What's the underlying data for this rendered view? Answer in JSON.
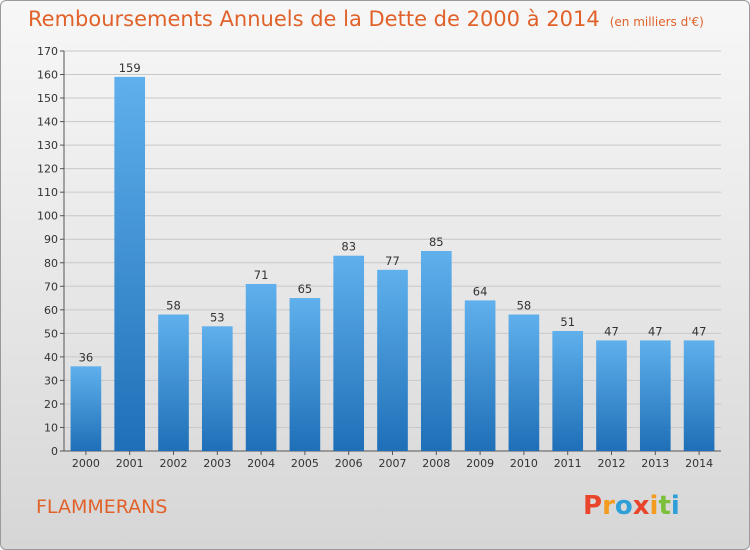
{
  "chart_data": {
    "type": "bar",
    "title": "Remboursements Annuels de la Dette de 2000 à 2014",
    "subtitle": "(en milliers d'€)",
    "xlabel": "",
    "ylabel": "",
    "categories": [
      "2000",
      "2001",
      "2002",
      "2003",
      "2004",
      "2005",
      "2006",
      "2007",
      "2008",
      "2009",
      "2010",
      "2011",
      "2012",
      "2013",
      "2014"
    ],
    "values": [
      36,
      159,
      58,
      53,
      71,
      65,
      83,
      77,
      85,
      64,
      58,
      51,
      47,
      47,
      47
    ],
    "ylim": [
      0,
      170
    ],
    "yticks": [
      0,
      10,
      20,
      30,
      40,
      50,
      60,
      70,
      80,
      90,
      100,
      110,
      120,
      130,
      140,
      150,
      160,
      170
    ],
    "grid": true,
    "bar_color": "#3d8fd6"
  },
  "commune": "FLAMMERANS",
  "logo": {
    "letters": [
      "P",
      "r",
      "o",
      "x",
      "i",
      "t",
      "i"
    ],
    "colors": [
      "#e8452c",
      "#f39c1f",
      "#2f9fd8",
      "#e8452c",
      "#f39c1f",
      "#7cbf3a",
      "#2f9fd8"
    ]
  }
}
